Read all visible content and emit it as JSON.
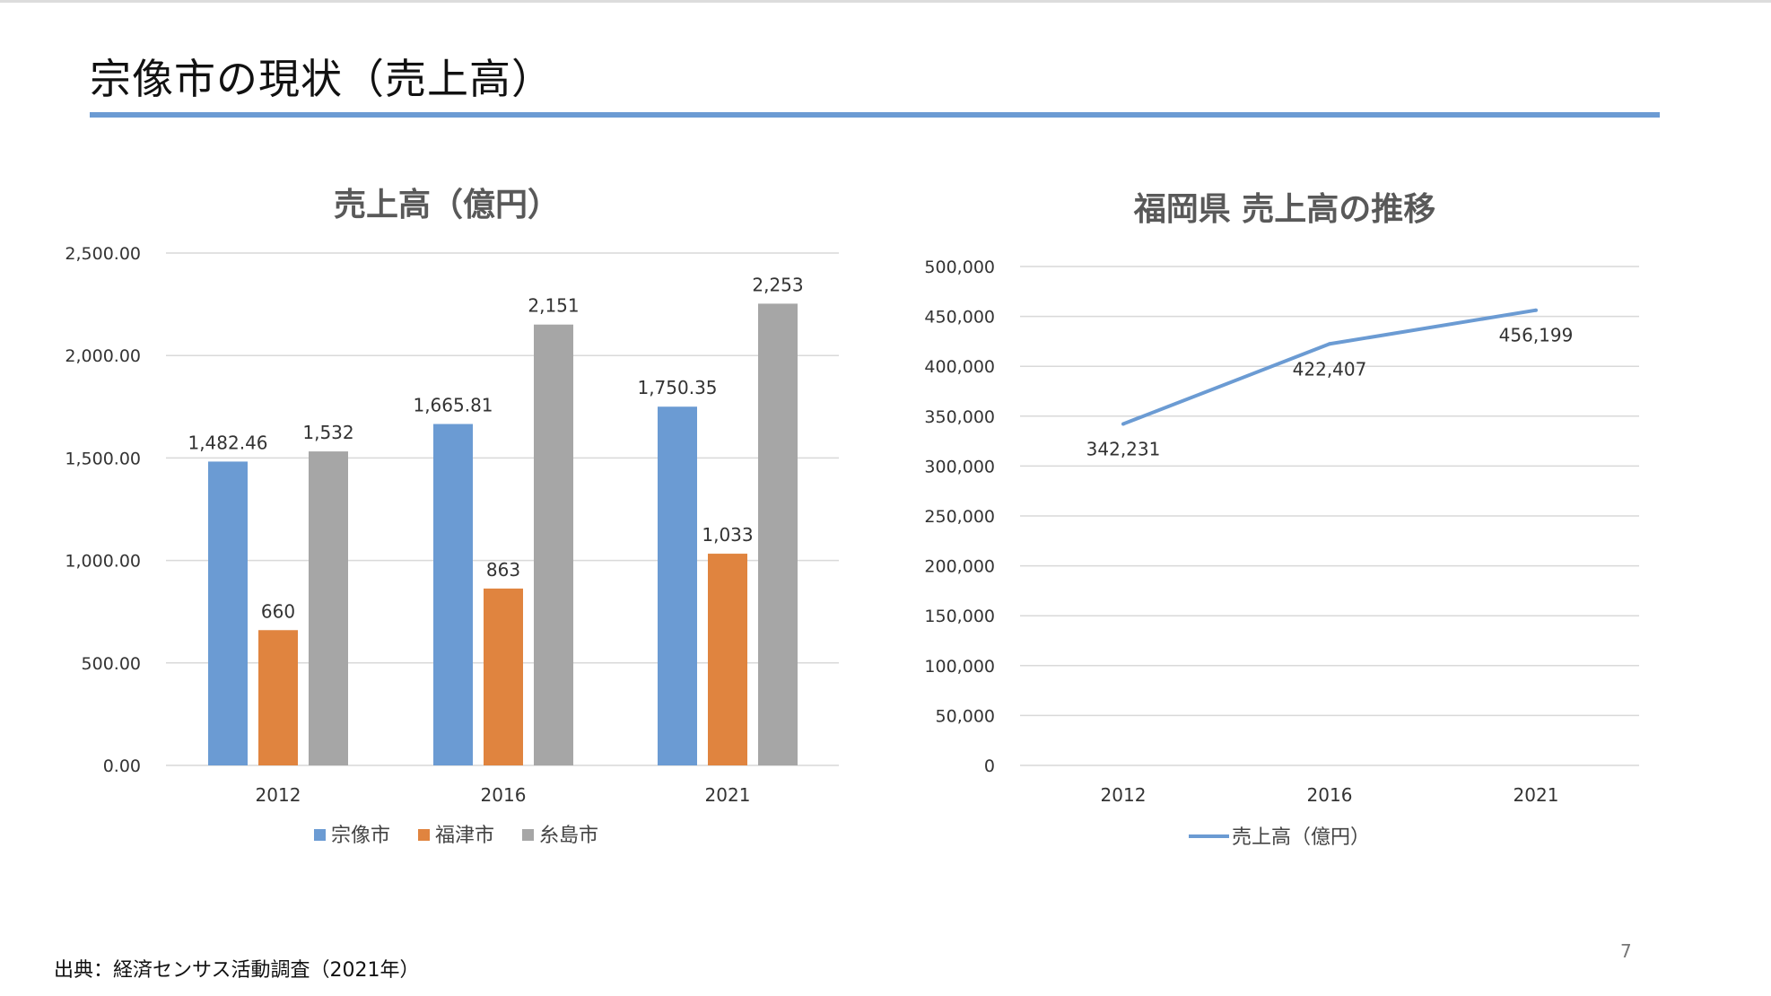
{
  "slide": {
    "title": "宗像市の現状（売上高）",
    "source": "出典：経済センサス活動調査（2021年）",
    "page_number": "7"
  },
  "colors": {
    "accent_rule": "#6b9bd3",
    "munakata": "#6b9bd3",
    "fukutsu": "#e0843f",
    "itoshima": "#a6a6a6",
    "gridline": "#d9d9d9",
    "line_series": "#6b9bd3"
  },
  "chart_data": [
    {
      "type": "bar",
      "title": "売上高（億円）",
      "categories": [
        "2012",
        "2016",
        "2021"
      ],
      "series": [
        {
          "name": "宗像市",
          "values": [
            1482.46,
            1665.81,
            1750.35
          ],
          "labels": [
            "1,482.46",
            "1,665.81",
            "1,750.35"
          ],
          "color": "#6b9bd3"
        },
        {
          "name": "福津市",
          "values": [
            660,
            863,
            1033
          ],
          "labels": [
            "660",
            "863",
            "1,033"
          ],
          "color": "#e0843f"
        },
        {
          "name": "糸島市",
          "values": [
            1532,
            2151,
            2253
          ],
          "labels": [
            "1,532",
            "2,151",
            "2,253"
          ],
          "color": "#a6a6a6"
        }
      ],
      "ylim": [
        0,
        2500
      ],
      "yticks": [
        0,
        500,
        1000,
        1500,
        2000,
        2500
      ],
      "ytick_labels": [
        "0.00",
        "500.00",
        "1,000.00",
        "1,500.00",
        "2,000.00",
        "2,500.00"
      ],
      "xlabel": "",
      "ylabel": "",
      "grid": true,
      "legend": "bottom"
    },
    {
      "type": "line",
      "title": "福岡県 売上高の推移",
      "categories": [
        "2012",
        "2016",
        "2021"
      ],
      "series": [
        {
          "name": "売上高（億円）",
          "values": [
            342231,
            422407,
            456199
          ],
          "labels": [
            "342,231",
            "422,407",
            "456,199"
          ],
          "color": "#6b9bd3"
        }
      ],
      "ylim": [
        0,
        500000
      ],
      "yticks": [
        0,
        50000,
        100000,
        150000,
        200000,
        250000,
        300000,
        350000,
        400000,
        450000,
        500000
      ],
      "ytick_labels": [
        "0",
        "50,000",
        "100,000",
        "150,000",
        "200,000",
        "250,000",
        "300,000",
        "350,000",
        "400,000",
        "450,000",
        "500,000"
      ],
      "xlabel": "",
      "ylabel": "",
      "grid": true,
      "legend": "bottom"
    }
  ]
}
